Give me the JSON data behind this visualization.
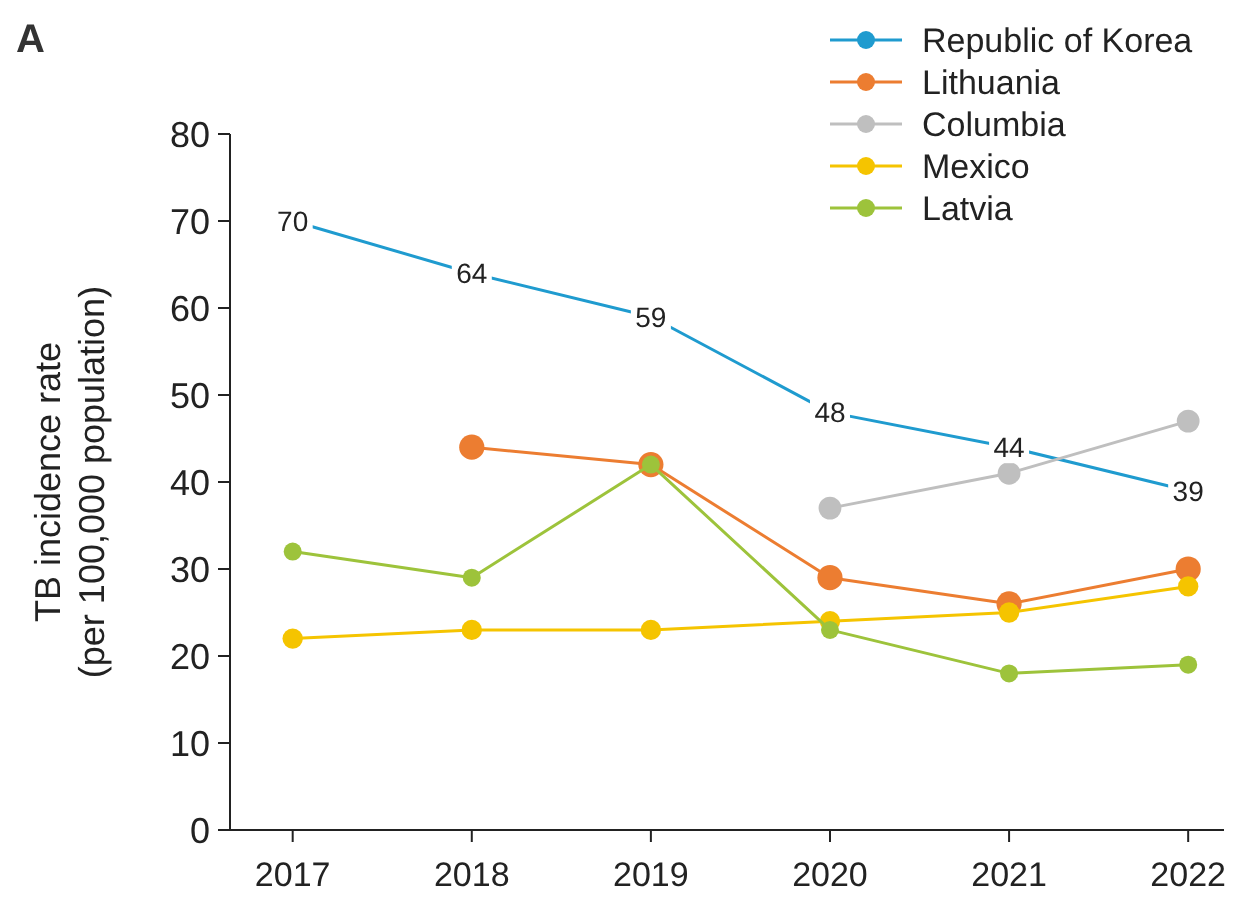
{
  "chart_data": {
    "type": "line",
    "ylabel": "TB incidence rate\n(per 100,000 population)",
    "annotations": [
      "A"
    ],
    "x": [
      2017,
      2018,
      2019,
      2020,
      2021,
      2022
    ],
    "xlim": [
      2016.65,
      2022.2
    ],
    "xticks": [
      2017,
      2018,
      2019,
      2020,
      2021,
      2022
    ],
    "ylim": [
      0,
      80
    ],
    "yticks": [
      0,
      10,
      20,
      30,
      40,
      50,
      60,
      70,
      80
    ],
    "grid": false,
    "legend": "top right",
    "marker": "circle",
    "line_style": "solid",
    "series": [
      {
        "name": "Republic of Korea",
        "color": "#1f9bcf",
        "values": [
          70,
          64,
          59,
          48,
          44,
          39
        ],
        "value_labels": [
          "70",
          "64",
          "59",
          "48",
          "44",
          "39"
        ]
      },
      {
        "name": "Lithuania",
        "color": "#ec7d31",
        "values": [
          null,
          44,
          42,
          29,
          26,
          30
        ]
      },
      {
        "name": "Columbia",
        "color": "#bfbfbf",
        "values": [
          null,
          null,
          null,
          37,
          41,
          47
        ]
      },
      {
        "name": "Mexico",
        "color": "#f5c400",
        "values": [
          22,
          23,
          23,
          24,
          25,
          28
        ]
      },
      {
        "name": "Latvia",
        "color": "#9dc33b",
        "values": [
          32,
          29,
          42,
          23,
          18,
          19
        ]
      }
    ]
  }
}
